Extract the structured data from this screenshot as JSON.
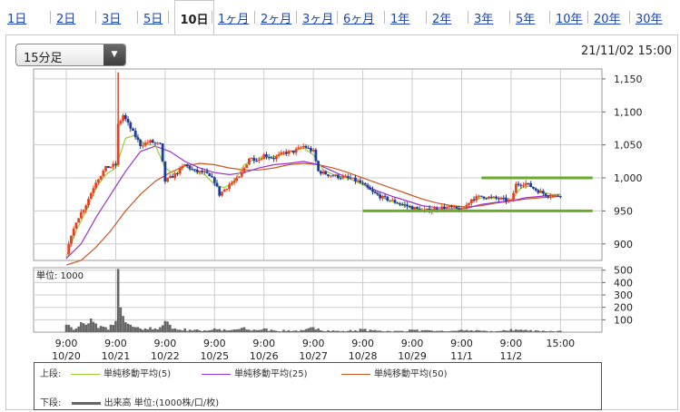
{
  "period_tabs": [
    {
      "label": "1日",
      "active": false
    },
    {
      "label": "2日",
      "active": false
    },
    {
      "label": "3日",
      "active": false
    },
    {
      "label": "5日",
      "active": false
    },
    {
      "label": "10日",
      "active": true
    },
    {
      "label": "1ヶ月",
      "active": false
    },
    {
      "label": "2ヶ月",
      "active": false
    },
    {
      "label": "3ヶ月",
      "active": false
    },
    {
      "label": "6ヶ月",
      "active": false
    },
    {
      "label": "1年",
      "active": false
    },
    {
      "label": "2年",
      "active": false
    },
    {
      "label": "3年",
      "active": false
    },
    {
      "label": "5年",
      "active": false
    },
    {
      "label": "10年",
      "active": false
    },
    {
      "label": "20年",
      "active": false
    },
    {
      "label": "30年",
      "active": false
    }
  ],
  "interval_select": {
    "value": "15分足"
  },
  "timestamp": "21/11/02 15:00",
  "colors": {
    "link": "#1a44b8",
    "up_candle": "#e84020",
    "down_candle": "#1e3c9a",
    "ma5": "#9acd32",
    "ma25": "#9932cc",
    "ma50": "#cc5522",
    "support_lines": "#6aab2a",
    "volume": "#666666"
  },
  "chart_data": [
    {
      "type": "candlestick",
      "y_tick_labels": [
        "1,150",
        "1,100",
        "1,050",
        "1,000",
        "950",
        "900"
      ],
      "ylim": [
        875,
        1165
      ],
      "x_time_labels": [
        "9:00",
        "9:00",
        "9:00",
        "9:00",
        "9:00",
        "9:00",
        "9:00",
        "9:00",
        "9:00",
        "9:00",
        "15:00"
      ],
      "x_date_labels": [
        "10/20",
        "10/21",
        "10/22",
        "10/25",
        "10/26",
        "10/27",
        "10/28",
        "10/29",
        "11/1",
        "11/2",
        ""
      ],
      "grid": true,
      "close_path": [
        [
          0,
          885
        ],
        [
          0.2,
          935
        ],
        [
          0.4,
          960
        ],
        [
          0.6,
          995
        ],
        [
          0.8,
          1015
        ],
        [
          1.0,
          1020
        ],
        [
          1.05,
          1080
        ],
        [
          1.15,
          1095
        ],
        [
          1.3,
          1075
        ],
        [
          1.5,
          1050
        ],
        [
          1.7,
          1055
        ],
        [
          1.9,
          1050
        ],
        [
          2.0,
          995
        ],
        [
          2.2,
          1005
        ],
        [
          2.4,
          1020
        ],
        [
          2.6,
          1010
        ],
        [
          2.8,
          1008
        ],
        [
          3.0,
          995
        ],
        [
          3.1,
          975
        ],
        [
          3.3,
          990
        ],
        [
          3.5,
          1000
        ],
        [
          3.7,
          1030
        ],
        [
          3.9,
          1028
        ],
        [
          4.0,
          1035
        ],
        [
          4.2,
          1030
        ],
        [
          4.4,
          1038
        ],
        [
          4.6,
          1040
        ],
        [
          4.8,
          1048
        ],
        [
          5.0,
          1040
        ],
        [
          5.1,
          1010
        ],
        [
          5.3,
          1005
        ],
        [
          5.5,
          1002
        ],
        [
          5.7,
          1000
        ],
        [
          5.9,
          995
        ],
        [
          6.0,
          990
        ],
        [
          6.2,
          978
        ],
        [
          6.4,
          970
        ],
        [
          6.6,
          965
        ],
        [
          6.8,
          960
        ],
        [
          7.0,
          955
        ],
        [
          7.2,
          950
        ],
        [
          7.4,
          952
        ],
        [
          7.6,
          955
        ],
        [
          7.8,
          955
        ],
        [
          8.0,
          950
        ],
        [
          8.2,
          968
        ],
        [
          8.4,
          972
        ],
        [
          8.6,
          970
        ],
        [
          8.8,
          968
        ],
        [
          9.0,
          965
        ],
        [
          9.1,
          990
        ],
        [
          9.3,
          992
        ],
        [
          9.5,
          982
        ],
        [
          9.7,
          975
        ],
        [
          9.9,
          972
        ],
        [
          10.0,
          975
        ]
      ],
      "ma5": [
        [
          0,
          880
        ],
        [
          0.2,
          920
        ],
        [
          0.4,
          950
        ],
        [
          0.6,
          985
        ],
        [
          0.8,
          1005
        ],
        [
          1.0,
          1015
        ],
        [
          1.2,
          1060
        ],
        [
          1.4,
          1065
        ],
        [
          1.6,
          1050
        ],
        [
          1.8,
          1050
        ],
        [
          2.0,
          1015
        ],
        [
          2.2,
          1005
        ],
        [
          2.4,
          1018
        ],
        [
          2.6,
          1010
        ],
        [
          2.8,
          1005
        ],
        [
          3.0,
          990
        ],
        [
          3.2,
          985
        ],
        [
          3.4,
          995
        ],
        [
          3.6,
          1020
        ],
        [
          3.8,
          1028
        ],
        [
          4.0,
          1030
        ],
        [
          4.2,
          1032
        ],
        [
          4.4,
          1036
        ],
        [
          4.6,
          1040
        ],
        [
          4.8,
          1045
        ],
        [
          5.0,
          1035
        ],
        [
          5.2,
          1012
        ],
        [
          5.4,
          1005
        ],
        [
          5.6,
          1001
        ],
        [
          5.8,
          997
        ],
        [
          6.0,
          990
        ],
        [
          6.2,
          980
        ],
        [
          6.4,
          970
        ],
        [
          6.6,
          964
        ],
        [
          6.8,
          958
        ],
        [
          7.0,
          955
        ],
        [
          7.2,
          951
        ],
        [
          7.4,
          953
        ],
        [
          7.6,
          954
        ],
        [
          7.8,
          954
        ],
        [
          8.0,
          952
        ],
        [
          8.2,
          965
        ],
        [
          8.4,
          970
        ],
        [
          8.6,
          970
        ],
        [
          8.8,
          968
        ],
        [
          9.0,
          966
        ],
        [
          9.2,
          985
        ],
        [
          9.4,
          988
        ],
        [
          9.6,
          980
        ],
        [
          9.8,
          975
        ],
        [
          10.0,
          975
        ]
      ],
      "ma25": [
        [
          0,
          878
        ],
        [
          0.3,
          900
        ],
        [
          0.6,
          940
        ],
        [
          0.9,
          975
        ],
        [
          1.2,
          1010
        ],
        [
          1.5,
          1040
        ],
        [
          1.8,
          1048
        ],
        [
          2.1,
          1040
        ],
        [
          2.4,
          1025
        ],
        [
          2.7,
          1015
        ],
        [
          3.0,
          1008
        ],
        [
          3.3,
          1005
        ],
        [
          3.6,
          1008
        ],
        [
          3.9,
          1015
        ],
        [
          4.2,
          1020
        ],
        [
          4.5,
          1022
        ],
        [
          4.8,
          1025
        ],
        [
          5.1,
          1020
        ],
        [
          5.4,
          1010
        ],
        [
          5.7,
          1000
        ],
        [
          6.0,
          990
        ],
        [
          6.3,
          980
        ],
        [
          6.6,
          972
        ],
        [
          6.9,
          965
        ],
        [
          7.2,
          958
        ],
        [
          7.5,
          955
        ],
        [
          7.8,
          953
        ],
        [
          8.1,
          954
        ],
        [
          8.4,
          960
        ],
        [
          8.7,
          963
        ],
        [
          9.0,
          965
        ],
        [
          9.3,
          970
        ],
        [
          9.6,
          972
        ],
        [
          10.0,
          975
        ]
      ],
      "ma50": [
        [
          0,
          868
        ],
        [
          0.3,
          875
        ],
        [
          0.6,
          895
        ],
        [
          0.9,
          920
        ],
        [
          1.2,
          950
        ],
        [
          1.5,
          975
        ],
        [
          1.8,
          995
        ],
        [
          2.1,
          1008
        ],
        [
          2.4,
          1018
        ],
        [
          2.7,
          1022
        ],
        [
          3.0,
          1020
        ],
        [
          3.3,
          1015
        ],
        [
          3.6,
          1012
        ],
        [
          3.9,
          1012
        ],
        [
          4.2,
          1015
        ],
        [
          4.5,
          1020
        ],
        [
          4.8,
          1022
        ],
        [
          5.1,
          1020
        ],
        [
          5.4,
          1015
        ],
        [
          5.7,
          1008
        ],
        [
          6.0,
          1000
        ],
        [
          6.3,
          992
        ],
        [
          6.6,
          984
        ],
        [
          6.9,
          976
        ],
        [
          7.2,
          968
        ],
        [
          7.5,
          962
        ],
        [
          7.8,
          958
        ],
        [
          8.1,
          956
        ],
        [
          8.4,
          958
        ],
        [
          8.7,
          962
        ],
        [
          9.0,
          965
        ],
        [
          9.3,
          968
        ],
        [
          9.6,
          970
        ],
        [
          10.0,
          972
        ]
      ],
      "support_lines": [
        {
          "from": 8.4,
          "to": 10.65,
          "y": 1000
        },
        {
          "from": 6.0,
          "to": 10.65,
          "y": 950
        }
      ]
    },
    {
      "type": "bar",
      "unit_label": "単位: 1000",
      "y_tick_labels": [
        "500",
        "400",
        "300",
        "200",
        "100"
      ],
      "ylim": [
        0,
        520
      ],
      "volume_profile": [
        [
          0,
          60
        ],
        [
          0.1,
          40
        ],
        [
          0.2,
          30
        ],
        [
          0.3,
          80
        ],
        [
          0.4,
          60
        ],
        [
          0.5,
          110
        ],
        [
          0.6,
          70
        ],
        [
          0.7,
          50
        ],
        [
          0.8,
          40
        ],
        [
          0.9,
          60
        ],
        [
          1.0,
          90
        ],
        [
          1.05,
          510
        ],
        [
          1.1,
          200
        ],
        [
          1.15,
          130
        ],
        [
          1.2,
          80
        ],
        [
          1.3,
          60
        ],
        [
          1.4,
          40
        ],
        [
          1.5,
          30
        ],
        [
          1.6,
          30
        ],
        [
          1.7,
          40
        ],
        [
          1.8,
          30
        ],
        [
          1.9,
          40
        ],
        [
          2.0,
          90
        ],
        [
          2.1,
          60
        ],
        [
          2.2,
          30
        ],
        [
          2.3,
          20
        ],
        [
          2.4,
          30
        ],
        [
          2.5,
          20
        ],
        [
          2.6,
          20
        ],
        [
          2.8,
          15
        ],
        [
          3.0,
          30
        ],
        [
          3.1,
          25
        ],
        [
          3.3,
          15
        ],
        [
          3.6,
          40
        ],
        [
          3.7,
          20
        ],
        [
          4.0,
          30
        ],
        [
          4.2,
          15
        ],
        [
          4.5,
          15
        ],
        [
          4.8,
          15
        ],
        [
          5.0,
          40
        ],
        [
          5.1,
          30
        ],
        [
          5.3,
          15
        ],
        [
          5.6,
          10
        ],
        [
          6.0,
          25
        ],
        [
          6.2,
          15
        ],
        [
          6.5,
          10
        ],
        [
          6.8,
          10
        ],
        [
          7.0,
          20
        ],
        [
          7.2,
          15
        ],
        [
          7.5,
          10
        ],
        [
          7.8,
          10
        ],
        [
          8.0,
          20
        ],
        [
          8.2,
          15
        ],
        [
          8.5,
          10
        ],
        [
          8.8,
          10
        ],
        [
          9.0,
          25
        ],
        [
          9.2,
          20
        ],
        [
          9.5,
          15
        ],
        [
          9.8,
          10
        ]
      ]
    }
  ],
  "legend": {
    "upper_label": "上段:",
    "lower_label": "下段:",
    "items": [
      {
        "label": "単純移動平均(5)"
      },
      {
        "label": "単純移動平均(25)"
      },
      {
        "label": "単純移動平均(50)"
      }
    ],
    "volume_item": "出来高 単位:(1000株/口/枚)"
  }
}
